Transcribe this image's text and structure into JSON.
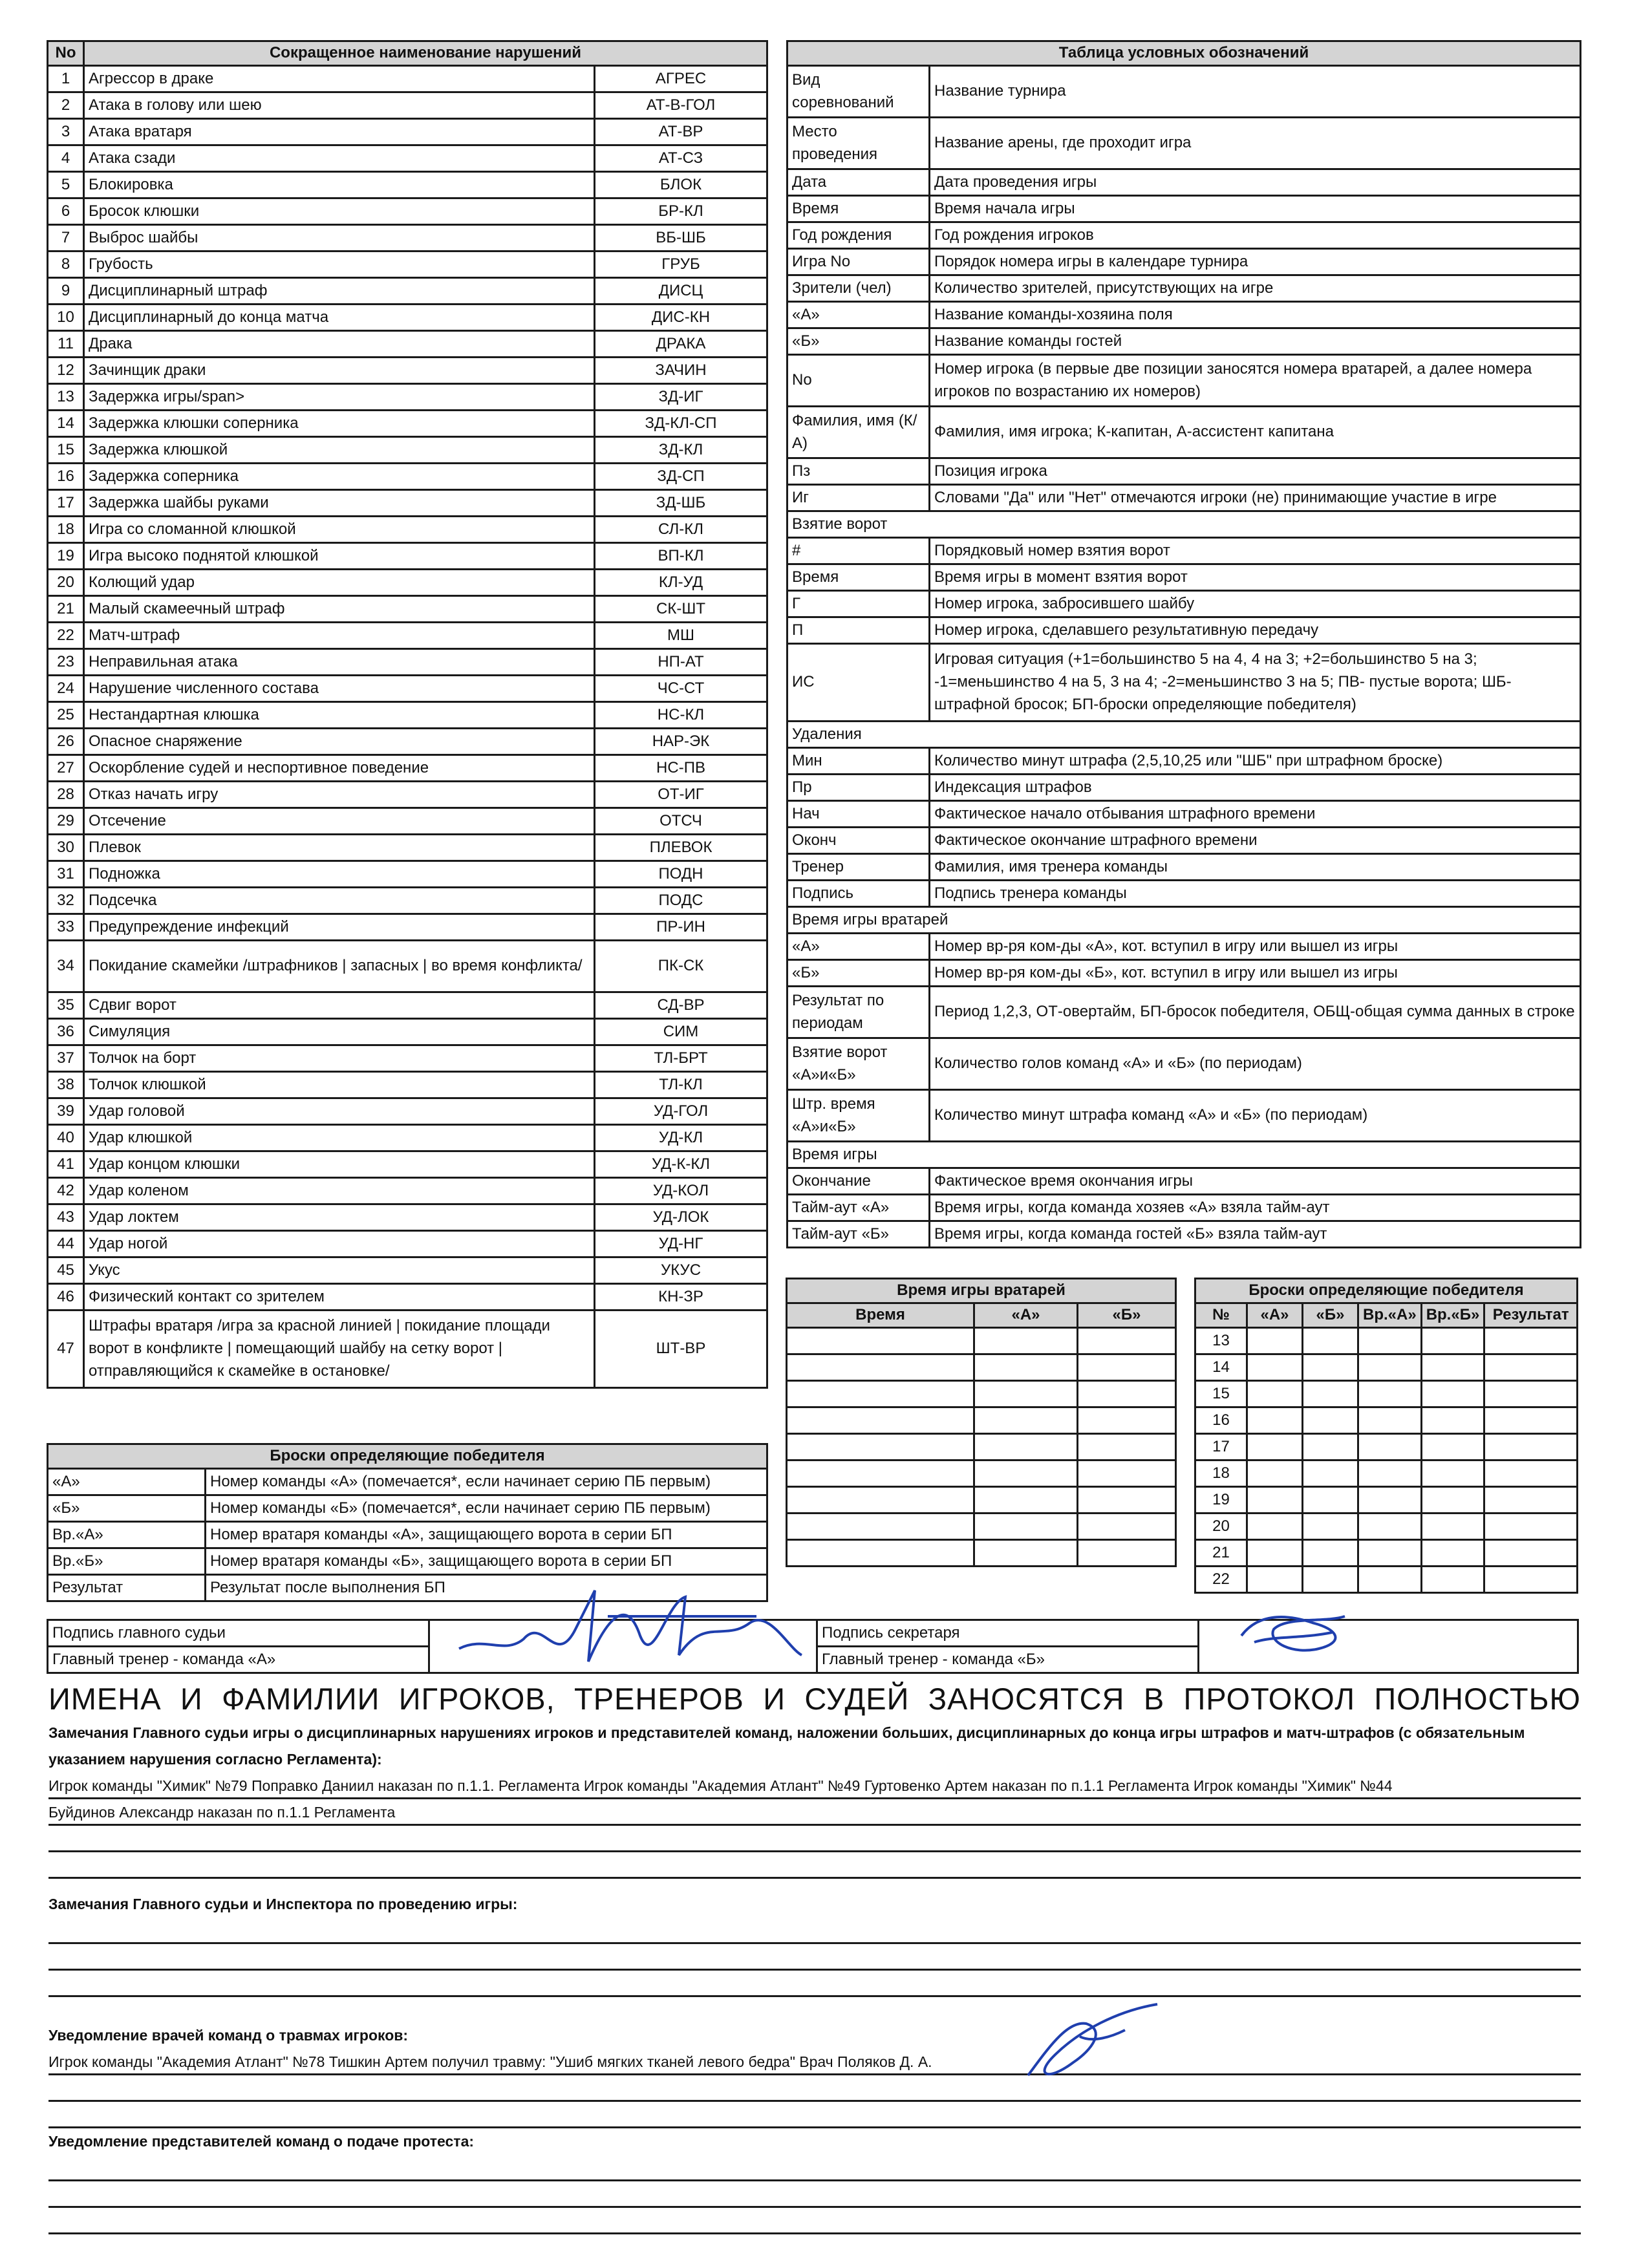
{
  "violations": {
    "headers": [
      "No",
      "Сокращенное наименование нарушений"
    ],
    "rows": [
      [
        "1",
        "Агрессор в драке",
        "АГРЕС"
      ],
      [
        "2",
        "Атака в голову или шею",
        "АТ-В-ГОЛ"
      ],
      [
        "3",
        "Атака вратаря",
        "АТ-ВР"
      ],
      [
        "4",
        "Атака сзади",
        "АТ-СЗ"
      ],
      [
        "5",
        "Блокировка",
        "БЛОК"
      ],
      [
        "6",
        "Бросок клюшки",
        "БР-КЛ"
      ],
      [
        "7",
        "Выброс шайбы",
        "ВБ-ШБ"
      ],
      [
        "8",
        "Грубость",
        "ГРУБ"
      ],
      [
        "9",
        "Дисциплинарный штраф",
        "ДИСЦ"
      ],
      [
        "10",
        "Дисциплинарный до конца матча",
        "ДИС-КН"
      ],
      [
        "11",
        "Драка",
        "ДРАКА"
      ],
      [
        "12",
        "Зачинщик драки",
        "ЗАЧИН"
      ],
      [
        "13",
        "Задержка игры/span>",
        "ЗД-ИГ"
      ],
      [
        "14",
        "Задержка клюшки соперника",
        "ЗД-КЛ-СП"
      ],
      [
        "15",
        "Задержка клюшкой",
        "ЗД-КЛ"
      ],
      [
        "16",
        "Задержка соперника",
        "ЗД-СП"
      ],
      [
        "17",
        "Задержка шайбы руками",
        "ЗД-ШБ"
      ],
      [
        "18",
        "Игра со сломанной клюшкой",
        "СЛ-КЛ"
      ],
      [
        "19",
        "Игра высоко поднятой клюшкой",
        "ВП-КЛ"
      ],
      [
        "20",
        "Колющий удар",
        "КЛ-УД"
      ],
      [
        "21",
        "Малый скамеечный штраф",
        "СК-ШТ"
      ],
      [
        "22",
        "Матч-штраф",
        "МШ"
      ],
      [
        "23",
        "Неправильная атака",
        "НП-АТ"
      ],
      [
        "24",
        "Нарушение численного состава",
        "ЧС-СТ"
      ],
      [
        "25",
        "Нестандартная клюшка",
        "НС-КЛ"
      ],
      [
        "26",
        "Опасное снаряжение",
        "НАР-ЭК"
      ],
      [
        "27",
        "Оскорбление судей и неспортивное поведение",
        "НС-ПВ"
      ],
      [
        "28",
        "Отказ начать игру",
        "ОТ-ИГ"
      ],
      [
        "29",
        "Отсечение",
        "ОТСЧ"
      ],
      [
        "30",
        "Плевок",
        "ПЛЕВОК"
      ],
      [
        "31",
        "Подножка",
        "ПОДН"
      ],
      [
        "32",
        "Подсечка",
        "ПОДС"
      ],
      [
        "33",
        "Предупреждение инфекций",
        "ПР-ИН"
      ],
      [
        "34",
        "Покидание скамейки /штрафников | запасных | во время конфликта/",
        "ПК-СК"
      ],
      [
        "35",
        "Сдвиг ворот",
        "СД-ВР"
      ],
      [
        "36",
        "Симуляция",
        "СИМ"
      ],
      [
        "37",
        "Толчок на борт",
        "ТЛ-БРТ"
      ],
      [
        "38",
        "Толчок клюшкой",
        "ТЛ-КЛ"
      ],
      [
        "39",
        "Удар головой",
        "УД-ГОЛ"
      ],
      [
        "40",
        "Удар клюшкой",
        "УД-КЛ"
      ],
      [
        "41",
        "Удар концом клюшки",
        "УД-К-КЛ"
      ],
      [
        "42",
        "Удар коленом",
        "УД-КОЛ"
      ],
      [
        "43",
        "Удар локтем",
        "УД-ЛОК"
      ],
      [
        "44",
        "Удар ногой",
        "УД-НГ"
      ],
      [
        "45",
        "Укус",
        "УКУС"
      ],
      [
        "46",
        "Физический контакт со зрителем",
        "КН-ЗР"
      ],
      [
        "47",
        "Штрафы вратаря /игра за красной линией | покидание площади ворот в конфликте | помещающий шайбу на сетку ворот |отправляющийся к скамейке в остановке/",
        "ШТ-ВР"
      ]
    ]
  },
  "legend": {
    "title": "Таблица условных обозначений",
    "rows": [
      {
        "k": "Вид соревнований",
        "v": "Название турнира",
        "h": "tall"
      },
      {
        "k": "Место проведения",
        "v": "Название арены, где проходит игра",
        "h": "tall"
      },
      {
        "k": "Дата",
        "v": "Дата проведения игры"
      },
      {
        "k": "Время",
        "v": "Время начала игры"
      },
      {
        "k": "Год рождения",
        "v": "Год рождения игроков"
      },
      {
        "k": "Игра No",
        "v": "Порядок номера игры в календаре турнира"
      },
      {
        "k": "Зрители (чел)",
        "v": "Количество зрителей, присутствующих на игре"
      },
      {
        "k": "«А»",
        "v": "Название команды-хозяина поля"
      },
      {
        "k": "«Б»",
        "v": "Название команды гостей"
      },
      {
        "k": "No",
        "v": "Номер игрока (в первые две позиции заносятся номера вратарей, а далее номера игроков по возрастанию их номеров)",
        "h": "tall"
      },
      {
        "k": "Фамилия, имя (К/А)",
        "v": "Фамилия, имя игрока; К-капитан, А-ассистент капитана",
        "h": "tall"
      },
      {
        "k": "Пз",
        "v": "Позиция игрока"
      },
      {
        "k": "Иг",
        "v": "Словами \"Да\" или \"Нет\" отмечаются игроки (не) принимающие участие в игре"
      },
      {
        "section": "Взятие ворот"
      },
      {
        "k": "#",
        "v": "Порядковый номер взятия ворот"
      },
      {
        "k": "Время",
        "v": "Время игры в момент взятия ворот"
      },
      {
        "k": "Г",
        "v": "Номер игрока, забросившего шайбу"
      },
      {
        "k": "П",
        "v": "Номер игрока, сделавшего результативную передачу"
      },
      {
        "k": "ИС",
        "v": "Игровая ситуация (+1=большинство 5 на 4, 4 на 3; +2=большинство 5 на 3; -1=меньшинство 4 на 5, 3 на 4; -2=меньшинство 3 на 5; ПВ- пустые ворота; ШБ-штрафной бросок; БП-броски определяющие победителя)",
        "h": "tri"
      },
      {
        "section": "Удаления"
      },
      {
        "k": "Мин",
        "v": "Количество минут штрафа (2,5,10,25 или \"ШБ\" при штрафном броске)"
      },
      {
        "k": "Пр",
        "v": "Индексация штрафов"
      },
      {
        "k": "Нач",
        "v": "Фактическое начало отбывания штрафного времени"
      },
      {
        "k": "Оконч",
        "v": "Фактическое окончание штрафного времени"
      },
      {
        "k": "Тренер",
        "v": "Фамилия, имя тренера команды"
      },
      {
        "k": "Подпись",
        "v": "Подпись тренера команды"
      },
      {
        "section": "Время игры вратарей"
      },
      {
        "k": "«А»",
        "v": "Номер вр-ря ком-ды «А», кот. вступил в игру или вышел из игры"
      },
      {
        "k": "«Б»",
        "v": "Номер вр-ря ком-ды «Б», кот. вступил в игру или вышел из игры"
      },
      {
        "k": "Результат по периодам",
        "v": "Период 1,2,3, ОТ-овертайм, БП-бросок победителя, ОБЩ-общая сумма данных в строке",
        "h": "tall"
      },
      {
        "k": "Взятие ворот «А»и«Б»",
        "v": "Количество голов команд «А» и «Б» (по периодам)",
        "h": "tall"
      },
      {
        "k": "Штр. время «А»и«Б»",
        "v": "Количество минут штрафа команд «А» и «Б» (по периодам)",
        "h": "tall"
      },
      {
        "section": "Время игры"
      },
      {
        "k": "Окончание",
        "v": "Фактическое время окончания игры"
      },
      {
        "k": "Тайм-аут «А»",
        "v": "Время игры, когда команда хозяев «А» взяла тайм-аут"
      },
      {
        "k": "Тайм-аут «Б»",
        "v": "Время игры, когда команда гостей «Б» взяла тайм-аут"
      }
    ]
  },
  "goalie_time": {
    "title": "Время игры вратарей",
    "cols": [
      "Время",
      "«А»",
      "«Б»"
    ],
    "rows": 9
  },
  "shootouts": {
    "title": "Броски определяющие победителя",
    "cols": [
      "№",
      "«А»",
      "«Б»",
      "Вр.«А»",
      "Вр.«Б»",
      "Результат"
    ],
    "numbers": [
      "13",
      "14",
      "15",
      "16",
      "17",
      "18",
      "19",
      "20",
      "21",
      "22"
    ]
  },
  "shootout_legend": {
    "title": "Броски определяющие победителя",
    "rows": [
      {
        "k": "«А»",
        "v": "Номер команды «А» (помечается*, если начинает серию ПБ первым)"
      },
      {
        "k": "«Б»",
        "v": "Номер команды «Б» (помечается*, если начинает серию ПБ первым)"
      },
      {
        "k": "Вр.«А»",
        "v": "Номер вратаря команды «А», защищающего ворота в серии БП"
      },
      {
        "k": "Вр.«Б»",
        "v": "Номер вратаря команды «Б», защищающего ворота в серии БП"
      },
      {
        "k": "Результат",
        "v": "Результат после выполнения БП"
      }
    ]
  },
  "signatures": {
    "head_referee": "Подпись главного судьи",
    "secretary": "Подпись секретаря",
    "coach_a": "Главный тренер - команда «А»",
    "coach_b": "Главный тренер - команда «Б»",
    "ink_color": "#1f3fae"
  },
  "heading": [
    "ИМЕНА",
    "И",
    "ФАМИЛИИ",
    "ИГРОКОВ,",
    "ТРЕНЕРОВ",
    "И",
    "СУДЕЙ",
    "ЗАНОСЯТСЯ",
    "В",
    "ПРОТОКОЛ",
    "ПОЛНОСТЬЮ"
  ],
  "remarks": {
    "disciplinary_title": "Замечания Главного судьи игры о дисциплинарных нарушениях игроков и представителей команд, наложении больших, дисциплинарных до конца игры штрафов и матч-штрафов (с обязательным указанием нарушения согласно Регламента):",
    "disciplinary_lines": [
      "Игрок команды \"Химик\" №79 Поправко Даниил наказан по п.1.1. Регламента Игрок команды \"Академия Атлант\" №49 Гуртовенко Артем наказан по п.1.1 Регламента Игрок команды \"Химик\" №44",
      "Буйдинов Александр наказан по п.1.1 Регламента",
      "",
      ""
    ],
    "inspector_title": "Замечания Главного судьи и Инспектора по проведению игры:",
    "inspector_lines": [
      "",
      "",
      ""
    ],
    "injury_title": "Уведомление врачей команд о травмах игроков:",
    "injury_lines": [
      "Игрок команды \"Академия Атлант\" №78 Тишкин Артем получил травму: \"Ушиб мягких тканей левого бедра\" Врач Поляков Д. А.",
      "",
      ""
    ],
    "protest_title": "Уведомление представителей команд о подаче протеста:",
    "protest_lines": [
      "",
      "",
      ""
    ]
  }
}
